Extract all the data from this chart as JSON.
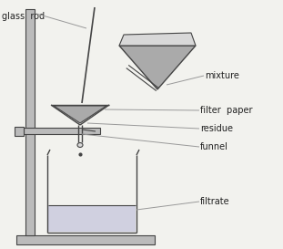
{
  "bg_color": "#f2f2ee",
  "line_color": "#999999",
  "dark_line": "#444444",
  "fill_gray": "#aaaaaa",
  "fill_light": "#bbbbbb",
  "fill_lighter": "#d8d8d8",
  "fill_liquid": "#d0d0e0",
  "labels": {
    "glass_rod": "glass  rod",
    "mixture": "mixture",
    "filter_paper": "filter  paper",
    "residue": "residue",
    "funnel": "funnel",
    "filtrate": "filtrate"
  },
  "font_size": 7.0
}
